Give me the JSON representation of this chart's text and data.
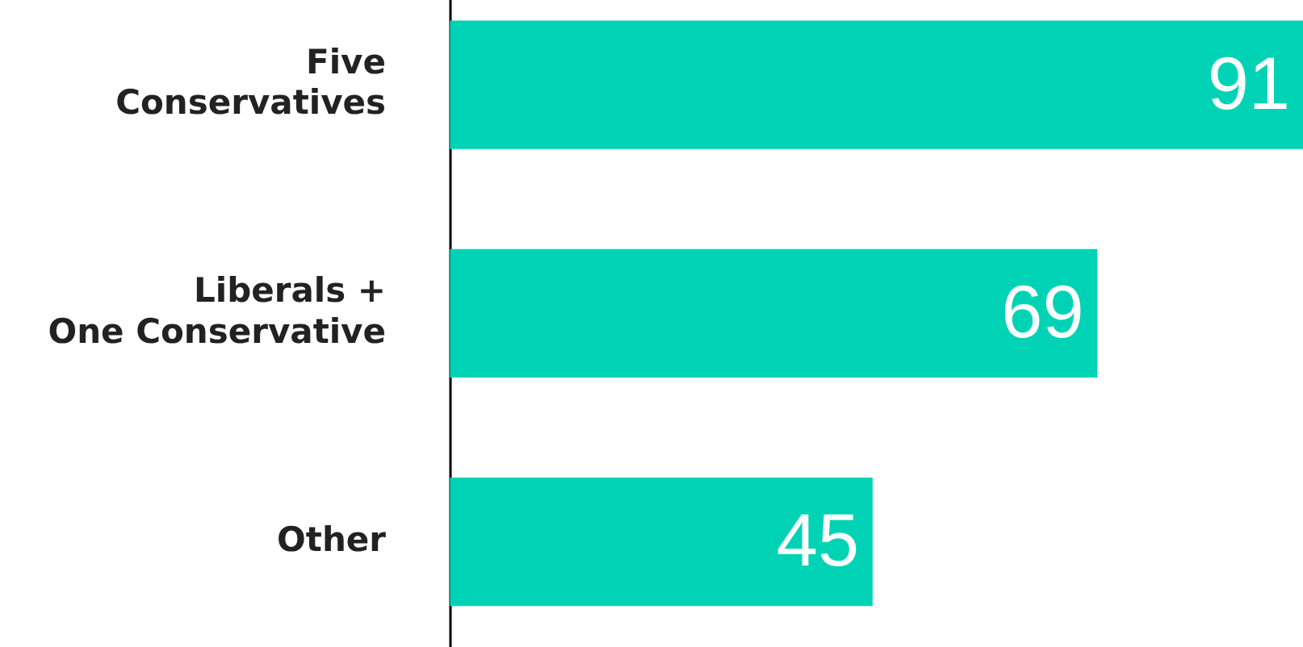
{
  "chart_data": {
    "type": "bar",
    "orientation": "horizontal",
    "categories": [
      "Five Conservatives",
      "Liberals + One Conservative",
      "Other"
    ],
    "values": [
      91,
      69,
      45
    ],
    "color": "#00d3b5",
    "data_labels": true
  }
}
